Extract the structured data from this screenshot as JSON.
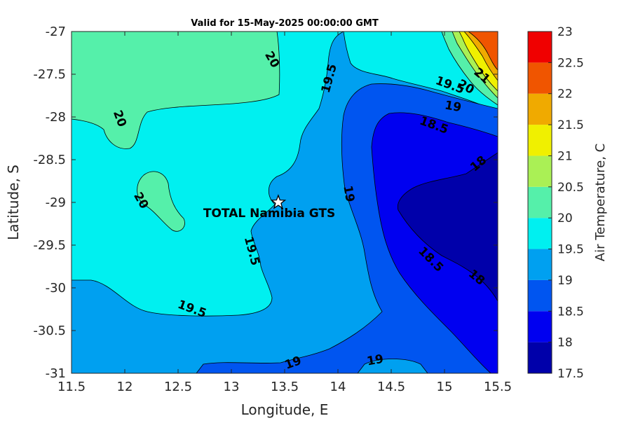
{
  "chart_data": {
    "type": "heatmap",
    "subtype": "filled-contour",
    "title": "Valid for 15-May-2025 00:00:00 GMT",
    "xlabel": "Longitude, E",
    "ylabel": "Latitude, S",
    "xlim": [
      11.5,
      15.5
    ],
    "ylim": [
      -31,
      -27
    ],
    "xticks": [
      "11.5",
      "12",
      "12.5",
      "13",
      "13.5",
      "14",
      "14.5",
      "15",
      "15.5"
    ],
    "yticks": [
      "-27",
      "-27.5",
      "-28",
      "-28.5",
      "-29",
      "-29.5",
      "-30",
      "-30.5",
      "-31"
    ],
    "colorbar": {
      "label": "Air Temperature, C",
      "levels": [
        17.5,
        18,
        18.5,
        19,
        19.5,
        20,
        20.5,
        21,
        21.5,
        22,
        22.5,
        23
      ],
      "tick_labels": [
        "17.5",
        "18",
        "18.5",
        "19",
        "19.5",
        "20",
        "20.5",
        "21",
        "21.5",
        "22",
        "22.5",
        "23"
      ],
      "colors": [
        "#0000aa",
        "#0000f0",
        "#0055f0",
        "#00a0f0",
        "#00f0f0",
        "#55f0aa",
        "#aaf055",
        "#f0f000",
        "#f0aa00",
        "#f05500",
        "#f00000",
        "#aa0000"
      ]
    },
    "contour_labels": [
      {
        "text": "20",
        "lon": 11.95,
        "lat": -28.02
      },
      {
        "text": "20",
        "lon": 12.15,
        "lat": -28.98
      },
      {
        "text": "20",
        "lon": 13.38,
        "lat": -27.33
      },
      {
        "text": "19.5",
        "lon": 13.92,
        "lat": -27.55
      },
      {
        "text": "19.5",
        "lon": 13.19,
        "lat": -29.57
      },
      {
        "text": "19.5",
        "lon": 12.63,
        "lat": -30.25
      },
      {
        "text": "19",
        "lon": 14.1,
        "lat": -28.9
      },
      {
        "text": "19",
        "lon": 13.58,
        "lat": -30.88
      },
      {
        "text": "19",
        "lon": 14.35,
        "lat": -30.85
      },
      {
        "text": "18.5",
        "lon": 14.9,
        "lat": -28.1
      },
      {
        "text": "18.5",
        "lon": 14.87,
        "lat": -29.67
      },
      {
        "text": "18",
        "lon": 15.32,
        "lat": -28.55
      },
      {
        "text": "18",
        "lon": 15.3,
        "lat": -29.88
      },
      {
        "text": "19.5",
        "lon": 15.05,
        "lat": -27.63
      },
      {
        "text": "19",
        "lon": 15.08,
        "lat": -27.88
      },
      {
        "text": "20",
        "lon": 15.2,
        "lat": -27.65
      },
      {
        "text": "21",
        "lon": 15.35,
        "lat": -27.52
      }
    ],
    "station": {
      "name": "TOTAL Namibia GTS",
      "lon": 13.44,
      "lat": -29.0
    }
  }
}
